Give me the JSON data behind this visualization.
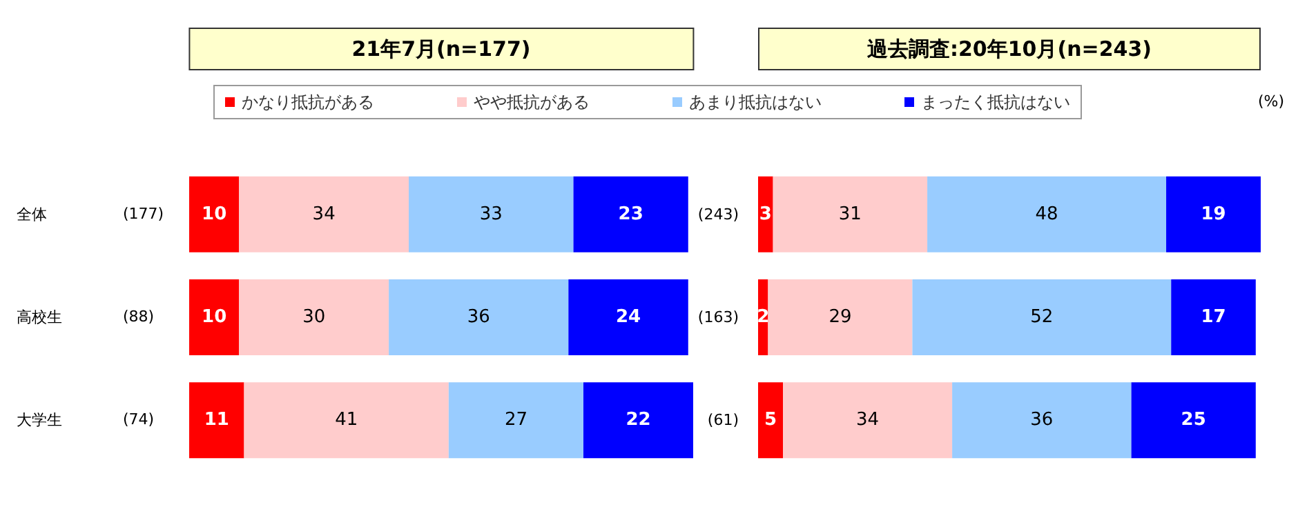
{
  "chart_data": [
    {
      "type": "bar",
      "orientation": "horizontal",
      "stacked": true,
      "data_labels": true,
      "legend": "top",
      "title": "21年7月(n=177)",
      "categories": [
        "全体",
        "高校生",
        "大学生"
      ],
      "series": [
        {
          "name": "かなり抵抗がある",
          "color": "#ff0000",
          "values": [
            10,
            10,
            11
          ]
        },
        {
          "name": "やや抵抗がある",
          "color": "#ffcccc",
          "values": [
            34,
            30,
            41
          ]
        },
        {
          "name": "あまり抵抗はない",
          "color": "#99ccff",
          "values": [
            33,
            36,
            27
          ]
        },
        {
          "name": "まったく抵抗はない",
          "color": "#0000ff",
          "values": [
            23,
            24,
            22
          ]
        }
      ],
      "annotations": [
        "(177)",
        "(88)",
        "(74)"
      ]
    },
    {
      "type": "bar",
      "orientation": "horizontal",
      "stacked": true,
      "data_labels": true,
      "title": "過去調査:20年10月(n=243)",
      "categories": [
        "(243)",
        "(163)",
        "(61)"
      ],
      "series": [
        {
          "color": "#ff0000",
          "values": [
            3,
            2,
            5
          ]
        },
        {
          "color": "#ffcccc",
          "values": [
            31,
            29,
            34
          ]
        },
        {
          "color": "#99ccff",
          "values": [
            48,
            52,
            36
          ]
        },
        {
          "color": "#0000ff",
          "values": [
            19,
            17,
            25
          ]
        }
      ],
      "annotations": [
        "(%)"
      ]
    }
  ]
}
